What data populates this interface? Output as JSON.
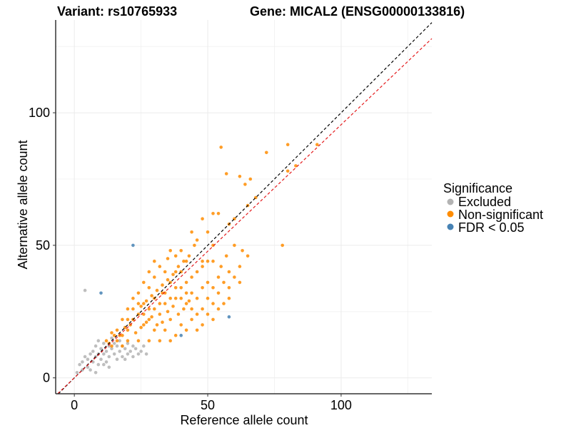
{
  "chart_data": {
    "type": "scatter",
    "title_left": "Variant: rs10765933",
    "title_right": "Gene: MICAL2 (ENSG00000133816)",
    "xlabel": "Reference allele count",
    "ylabel": "Alternative allele count",
    "xlim": [
      -7,
      134
    ],
    "ylim": [
      -6,
      135
    ],
    "x_ticks": [
      0,
      50,
      100
    ],
    "y_ticks": [
      0,
      50,
      100
    ],
    "x_minor": [
      25,
      75,
      125
    ],
    "y_minor": [
      25,
      75,
      125
    ],
    "grid": true,
    "legend": {
      "title": "Significance",
      "position": "right",
      "entries": [
        {
          "label": "Excluded",
          "color": "#b3b3b3"
        },
        {
          "label": "Non-significant",
          "color": "#ff8c00"
        },
        {
          "label": "FDR < 0.05",
          "color": "#4682b4"
        }
      ]
    },
    "reference_lines": [
      {
        "name": "identity",
        "slope": 1.0,
        "intercept": 0,
        "color": "#000000",
        "dash": "dashed"
      },
      {
        "name": "fitted",
        "slope": 0.955,
        "intercept": 0,
        "color": "#e41a1c",
        "dash": "dashed"
      }
    ],
    "series": [
      {
        "name": "Excluded",
        "color": "#b3b3b3",
        "points": [
          [
            4,
            33
          ],
          [
            2,
            5
          ],
          [
            3,
            6
          ],
          [
            4,
            8
          ],
          [
            5,
            4
          ],
          [
            5,
            7
          ],
          [
            6,
            9
          ],
          [
            7,
            6
          ],
          [
            7,
            10
          ],
          [
            8,
            8
          ],
          [
            8,
            12
          ],
          [
            9,
            5
          ],
          [
            9,
            9
          ],
          [
            9,
            14
          ],
          [
            10,
            7
          ],
          [
            10,
            11
          ],
          [
            11,
            9
          ],
          [
            11,
            13
          ],
          [
            12,
            6
          ],
          [
            12,
            10
          ],
          [
            13,
            12
          ],
          [
            13,
            8
          ],
          [
            14,
            11
          ],
          [
            14,
            15
          ],
          [
            15,
            9
          ],
          [
            15,
            13
          ],
          [
            16,
            7
          ],
          [
            16,
            12
          ],
          [
            17,
            10
          ],
          [
            17,
            14
          ],
          [
            18,
            8
          ],
          [
            18,
            12
          ],
          [
            19,
            11
          ],
          [
            20,
            9
          ],
          [
            20,
            13
          ],
          [
            21,
            10
          ],
          [
            22,
            8
          ],
          [
            22,
            12
          ],
          [
            23,
            11
          ],
          [
            24,
            9
          ],
          [
            25,
            10
          ],
          [
            26,
            12
          ],
          [
            27,
            9
          ],
          [
            3,
            3
          ],
          [
            6,
            3
          ],
          [
            11,
            5
          ],
          [
            13,
            4
          ],
          [
            19,
            7
          ],
          [
            8,
            2
          ],
          [
            1,
            2
          ]
        ]
      },
      {
        "name": "Non-significant",
        "color": "#ff8c00",
        "points": [
          [
            55,
            87
          ],
          [
            72,
            85
          ],
          [
            80,
            88
          ],
          [
            91,
            88
          ],
          [
            83,
            80
          ],
          [
            80,
            78
          ],
          [
            66,
            75
          ],
          [
            62,
            76
          ],
          [
            57,
            77
          ],
          [
            64,
            73
          ],
          [
            68,
            68
          ],
          [
            65,
            65
          ],
          [
            60,
            60
          ],
          [
            58,
            58
          ],
          [
            52,
            62
          ],
          [
            48,
            60
          ],
          [
            54,
            62
          ],
          [
            44,
            55
          ],
          [
            46,
            52
          ],
          [
            50,
            55
          ],
          [
            52,
            50
          ],
          [
            78,
            50
          ],
          [
            60,
            50
          ],
          [
            63,
            48
          ],
          [
            65,
            46
          ],
          [
            57,
            46
          ],
          [
            55,
            42
          ],
          [
            62,
            42
          ],
          [
            58,
            40
          ],
          [
            52,
            44
          ],
          [
            48,
            44
          ],
          [
            45,
            50
          ],
          [
            40,
            48
          ],
          [
            42,
            44
          ],
          [
            38,
            40
          ],
          [
            35,
            45
          ],
          [
            32,
            42
          ],
          [
            36,
            36
          ],
          [
            30,
            38
          ],
          [
            28,
            34
          ],
          [
            33,
            32
          ],
          [
            38,
            30
          ],
          [
            42,
            28
          ],
          [
            46,
            30
          ],
          [
            50,
            36
          ],
          [
            54,
            38
          ],
          [
            48,
            34
          ],
          [
            44,
            38
          ],
          [
            40,
            34
          ],
          [
            34,
            28
          ],
          [
            30,
            30
          ],
          [
            26,
            28
          ],
          [
            24,
            24
          ],
          [
            28,
            22
          ],
          [
            32,
            24
          ],
          [
            36,
            22
          ],
          [
            40,
            20
          ],
          [
            44,
            22
          ],
          [
            48,
            26
          ],
          [
            50,
            24
          ],
          [
            52,
            28
          ],
          [
            46,
            18
          ],
          [
            38,
            16
          ],
          [
            34,
            18
          ],
          [
            30,
            18
          ],
          [
            26,
            20
          ],
          [
            22,
            22
          ],
          [
            20,
            18
          ],
          [
            18,
            16
          ],
          [
            16,
            14
          ],
          [
            14,
            12
          ],
          [
            12,
            14
          ],
          [
            20,
            26
          ],
          [
            22,
            30
          ],
          [
            24,
            32
          ],
          [
            26,
            36
          ],
          [
            28,
            40
          ],
          [
            30,
            44
          ],
          [
            34,
            40
          ],
          [
            36,
            48
          ],
          [
            38,
            46
          ],
          [
            40,
            40
          ],
          [
            42,
            36
          ],
          [
            44,
            32
          ],
          [
            46,
            40
          ],
          [
            48,
            42
          ],
          [
            50,
            44
          ],
          [
            52,
            34
          ],
          [
            54,
            32
          ],
          [
            56,
            36
          ],
          [
            58,
            34
          ],
          [
            60,
            38
          ],
          [
            62,
            36
          ],
          [
            56,
            28
          ],
          [
            52,
            22
          ],
          [
            48,
            20
          ],
          [
            42,
            18
          ],
          [
            36,
            14
          ],
          [
            32,
            14
          ],
          [
            28,
            14
          ],
          [
            24,
            14
          ],
          [
            20,
            14
          ],
          [
            18,
            12
          ],
          [
            16,
            18
          ],
          [
            18,
            22
          ],
          [
            20,
            22
          ],
          [
            22,
            26
          ],
          [
            24,
            28
          ],
          [
            26,
            24
          ],
          [
            28,
            26
          ],
          [
            30,
            26
          ],
          [
            32,
            28
          ],
          [
            34,
            32
          ],
          [
            36,
            30
          ],
          [
            38,
            34
          ],
          [
            40,
            30
          ],
          [
            42,
            32
          ],
          [
            44,
            26
          ],
          [
            46,
            24
          ],
          [
            50,
            30
          ],
          [
            54,
            26
          ],
          [
            58,
            30
          ],
          [
            35,
            25
          ],
          [
            37,
            27
          ],
          [
            39,
            24
          ],
          [
            41,
            26
          ],
          [
            43,
            29
          ],
          [
            29,
            31
          ],
          [
            27,
            29
          ],
          [
            25,
            27
          ],
          [
            31,
            33
          ],
          [
            33,
            35
          ],
          [
            35,
            37
          ],
          [
            37,
            39
          ],
          [
            39,
            42
          ],
          [
            41,
            44
          ],
          [
            43,
            46
          ],
          [
            33,
            21
          ],
          [
            31,
            20
          ],
          [
            29,
            23
          ],
          [
            27,
            21
          ],
          [
            25,
            19
          ],
          [
            23,
            17
          ],
          [
            21,
            20
          ],
          [
            19,
            19
          ],
          [
            17,
            16
          ],
          [
            15,
            16
          ],
          [
            14,
            17
          ],
          [
            13,
            13
          ]
        ]
      },
      {
        "name": "FDR < 0.05",
        "color": "#4682b4",
        "points": [
          [
            22,
            50
          ],
          [
            10,
            32
          ],
          [
            58,
            23
          ],
          [
            40,
            16
          ]
        ]
      }
    ]
  }
}
